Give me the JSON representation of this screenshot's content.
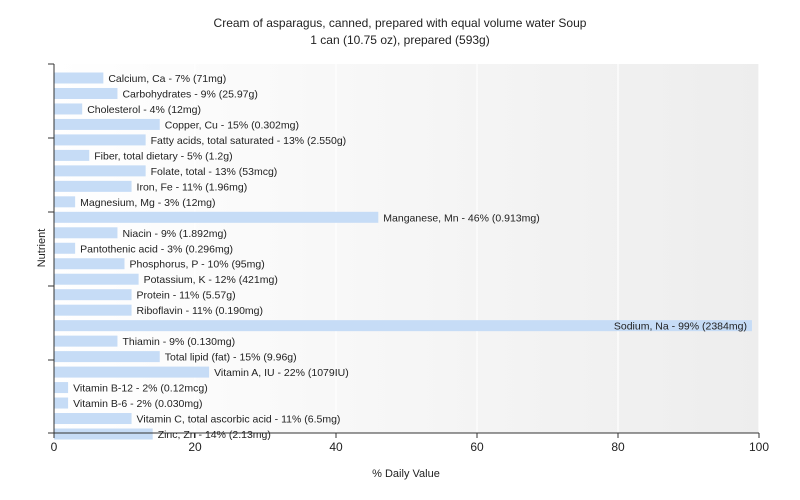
{
  "chart_data": {
    "type": "bar",
    "orientation": "horizontal",
    "title": "Cream of asparagus, canned, prepared with equal volume water Soup",
    "subtitle": "1 can (10.75 oz), prepared (593g)",
    "xlabel": "% Daily Value",
    "ylabel": "Nutrient",
    "xlim": [
      0,
      100
    ],
    "xticks": [
      "0",
      "20",
      "40",
      "60",
      "80",
      "100"
    ],
    "grid": true,
    "bar_color": "#c6dcf6",
    "categories": [
      "Calcium, Ca",
      "Carbohydrates",
      "Cholesterol",
      "Copper, Cu",
      "Fatty acids, total saturated",
      "Fiber, total dietary",
      "Folate, total",
      "Iron, Fe",
      "Magnesium, Mg",
      "Manganese, Mn",
      "Niacin",
      "Pantothenic acid",
      "Phosphorus, P",
      "Potassium, K",
      "Protein",
      "Riboflavin",
      "Sodium, Na",
      "Thiamin",
      "Total lipid (fat)",
      "Vitamin A, IU",
      "Vitamin B-12",
      "Vitamin B-6",
      "Vitamin C, total ascorbic acid",
      "Zinc, Zn"
    ],
    "values": [
      7,
      9,
      4,
      15,
      13,
      5,
      13,
      11,
      3,
      46,
      9,
      3,
      10,
      12,
      11,
      11,
      99,
      9,
      15,
      22,
      2,
      2,
      11,
      14
    ],
    "labels": [
      "Calcium, Ca - 7% (71mg)",
      "Carbohydrates - 9% (25.97g)",
      "Cholesterol - 4% (12mg)",
      "Copper, Cu - 15% (0.302mg)",
      "Fatty acids, total saturated - 13% (2.550g)",
      "Fiber, total dietary - 5% (1.2g)",
      "Folate, total - 13% (53mcg)",
      "Iron, Fe - 11% (1.96mg)",
      "Magnesium, Mg - 3% (12mg)",
      "Manganese, Mn - 46% (0.913mg)",
      "Niacin - 9% (1.892mg)",
      "Pantothenic acid - 3% (0.296mg)",
      "Phosphorus, P - 10% (95mg)",
      "Potassium, K - 12% (421mg)",
      "Protein - 11% (5.57g)",
      "Riboflavin - 11% (0.190mg)",
      "Sodium, Na - 99% (2384mg)",
      "Thiamin - 9% (0.130mg)",
      "Total lipid (fat) - 15% (9.96g)",
      "Vitamin A, IU - 22% (1079IU)",
      "Vitamin B-12 - 2% (0.12mcg)",
      "Vitamin B-6 - 2% (0.030mg)",
      "Vitamin C, total ascorbic acid - 11% (6.5mg)",
      "Zinc, Zn - 14% (2.13mg)"
    ]
  }
}
